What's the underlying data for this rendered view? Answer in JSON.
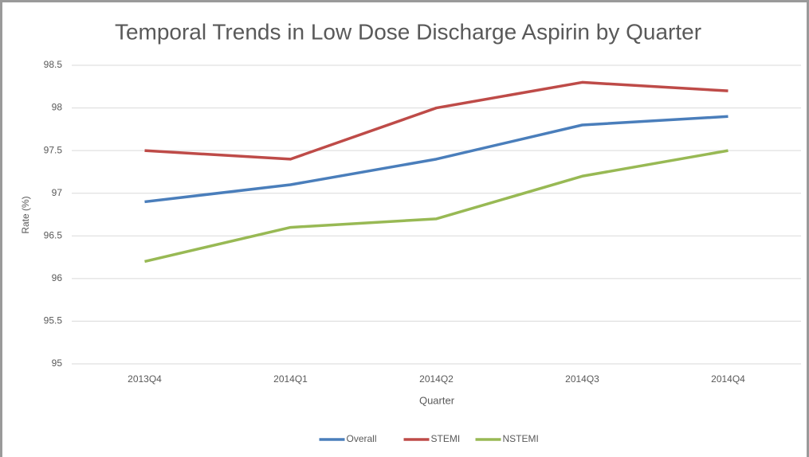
{
  "chart_data": {
    "type": "line",
    "title": "Temporal Trends in Low Dose Discharge Aspirin by Quarter",
    "x_label": "Quarter",
    "y_label": "Rate (%)",
    "categories": [
      "2013Q4",
      "2014Q1",
      "2014Q2",
      "2014Q3",
      "2014Q4"
    ],
    "series": [
      {
        "name": "Overall",
        "color": "#4a7ebb",
        "values": [
          96.9,
          97.1,
          97.4,
          97.8,
          97.9
        ]
      },
      {
        "name": "STEMI",
        "color": "#be4b48",
        "values": [
          97.5,
          97.4,
          98.0,
          98.3,
          98.2
        ]
      },
      {
        "name": "NSTEMI",
        "color": "#98b954",
        "values": [
          96.2,
          96.6,
          96.7,
          97.2,
          97.5
        ]
      }
    ],
    "ylim": [
      95,
      98.5
    ],
    "yticks": [
      95,
      95.5,
      96,
      96.5,
      97,
      97.5,
      98,
      98.5
    ],
    "grid": true,
    "legend": "bottom"
  }
}
